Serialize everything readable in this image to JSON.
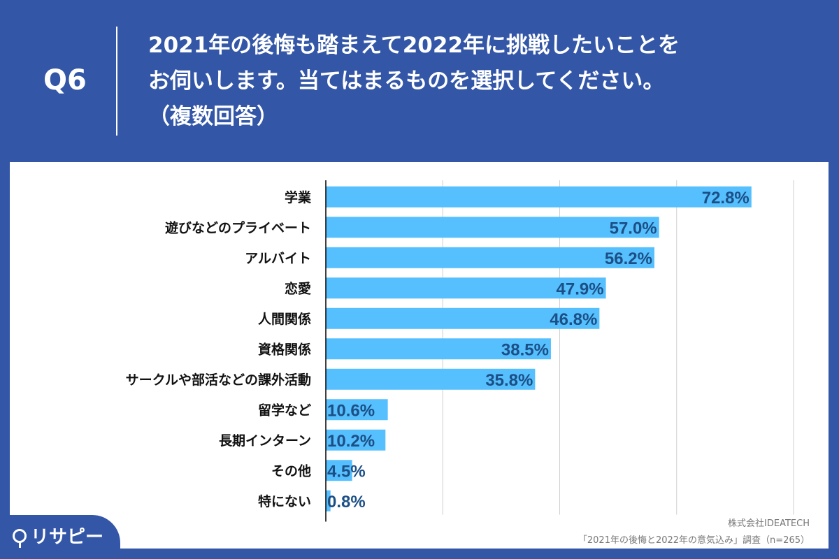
{
  "header": {
    "question_no": "Q6",
    "title_lines": [
      "2021年の後悔も踏まえて2022年に挑戦したいことを",
      "お伺いします。当てはまるものを選択してください。",
      "（複数回答）"
    ]
  },
  "chart_data": {
    "type": "bar",
    "orientation": "horizontal",
    "categories": [
      "学業",
      "遊びなどのプライベート",
      "アルバイト",
      "恋愛",
      "人間関係",
      "資格関係",
      "サークルや部活などの課外活動",
      "留学など",
      "長期インターン",
      "その他",
      "特にない"
    ],
    "values": [
      72.8,
      57.0,
      56.2,
      47.9,
      46.8,
      38.5,
      35.8,
      10.6,
      10.2,
      4.5,
      0.8
    ],
    "data_labels": [
      "72.8%",
      "57.0%",
      "56.2%",
      "47.9%",
      "46.8%",
      "38.5%",
      "35.8%",
      "10.6%",
      "10.2%",
      "4.5%",
      "0.8%"
    ],
    "unit": "%",
    "xlim": [
      0,
      80
    ],
    "grid_step": 20,
    "grid": true,
    "colors": {
      "bar": "#56bffd",
      "label": "#1b4f86",
      "background": "#3356a7"
    }
  },
  "footer": {
    "logo_text": "リサピー",
    "company": "株式会社IDEATECH",
    "survey": "「2021年の後悔と2022年の意気込み」調査（n=265）"
  }
}
